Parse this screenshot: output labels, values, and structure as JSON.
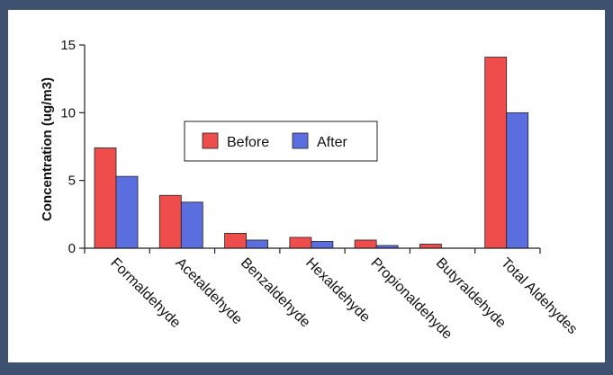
{
  "chart_data": {
    "type": "bar",
    "title": "",
    "xlabel": "",
    "ylabel": "Concentration (ug/m3)",
    "ylim": [
      0,
      15
    ],
    "yticks": [
      0,
      5,
      10,
      15
    ],
    "grid": false,
    "legend_position": "upper-center",
    "categories": [
      "Formaldehyde",
      "Acetaldehyde",
      "Benzaldehyde",
      "Hexaldehyde",
      "Propionaldehyde",
      "Butyraldehyde",
      "Total Aldehydes"
    ],
    "series": [
      {
        "name": "Before",
        "color": "#ef4c4c",
        "values": [
          7.4,
          3.9,
          1.1,
          0.8,
          0.6,
          0.3,
          14.1
        ]
      },
      {
        "name": "After",
        "color": "#5b6ee0",
        "values": [
          5.3,
          3.4,
          0.6,
          0.5,
          0.2,
          0.0,
          10.0
        ]
      }
    ]
  }
}
